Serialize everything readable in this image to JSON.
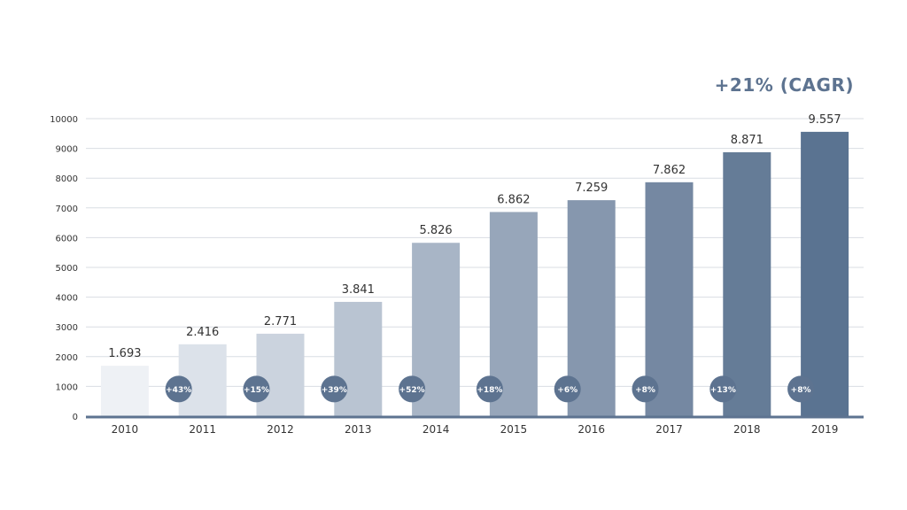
{
  "cagr_label": "+21% (CAGR)",
  "colors": {
    "grid": "#d9dde3",
    "axis": "#5d7390",
    "text": "#333333",
    "badge": "#5d7390",
    "badge_text": "#ffffff",
    "accent": "#5d7390",
    "bars": [
      "#eef1f5",
      "#dce2ea",
      "#cbd3de",
      "#b9c4d2",
      "#a8b5c6",
      "#97a6ba",
      "#8697ae",
      "#7588a2",
      "#657c97",
      "#5a7391"
    ]
  },
  "chart_data": {
    "type": "bar",
    "categories": [
      "2010",
      "2011",
      "2012",
      "2013",
      "2014",
      "2015",
      "2016",
      "2017",
      "2018",
      "2019"
    ],
    "values": [
      1693,
      2416,
      2771,
      3841,
      5826,
      6862,
      7259,
      7862,
      8871,
      9557
    ],
    "value_labels": [
      "1.693",
      "2.416",
      "2.771",
      "3.841",
      "5.826",
      "6.862",
      "7.259",
      "7.862",
      "8.871",
      "9.557"
    ],
    "growth_labels": [
      "+43%",
      "+15%",
      "+39%",
      "+52%",
      "+18%",
      "+6%",
      "+8%",
      "+13%",
      "+8%"
    ],
    "yticks": [
      0,
      1000,
      2000,
      3000,
      4000,
      5000,
      6000,
      7000,
      8000,
      9000,
      10000
    ],
    "ylim": [
      0,
      10000
    ],
    "grid": true,
    "title": "",
    "xlabel": "",
    "ylabel": ""
  }
}
